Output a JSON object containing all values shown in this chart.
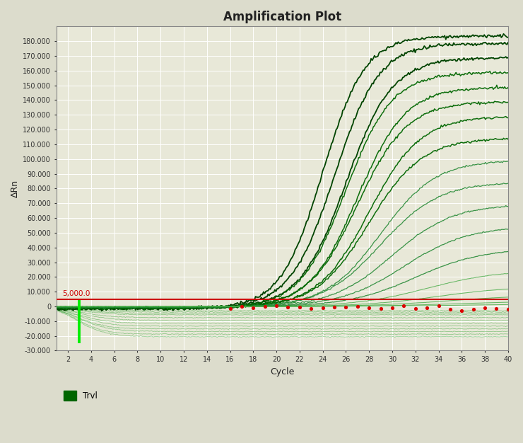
{
  "title": "Amplification Plot",
  "xlabel": "Cycle",
  "ylabel": "ΔRn",
  "xlim": [
    1,
    40
  ],
  "ylim": [
    -30000,
    190000
  ],
  "yticks": [
    -30000,
    -20000,
    -10000,
    0,
    10000,
    20000,
    30000,
    40000,
    50000,
    60000,
    70000,
    80000,
    90000,
    100000,
    110000,
    120000,
    130000,
    140000,
    150000,
    160000,
    170000,
    180000
  ],
  "ytick_labels": [
    "-30.000",
    "-20.000",
    "-10.000",
    "0",
    "10.000",
    "20.000",
    "30.000",
    "40.000",
    "50.000",
    "60.000",
    "70.000",
    "80.000",
    "90.000",
    "100.000",
    "110.000",
    "120.000",
    "130.000",
    "140.000",
    "150.000",
    "160.000",
    "170.000",
    "180.000"
  ],
  "xticks": [
    2,
    4,
    6,
    8,
    10,
    12,
    14,
    16,
    18,
    20,
    22,
    24,
    26,
    28,
    30,
    32,
    34,
    36,
    38,
    40
  ],
  "background_color": "#dcdccc",
  "plot_bg_color": "#e8e8d8",
  "grid_color": "#ffffff",
  "line_color_dark": "#004400",
  "line_color_mid": "#006600",
  "line_color_light": "#44aa44",
  "threshold_color": "#cc0000",
  "threshold_value": 5000,
  "threshold_label": "5,000.0",
  "title_fontsize": 12,
  "axis_label_fontsize": 9,
  "tick_fontsize": 7,
  "legend_label": "Trvl",
  "legend_color": "#006600"
}
